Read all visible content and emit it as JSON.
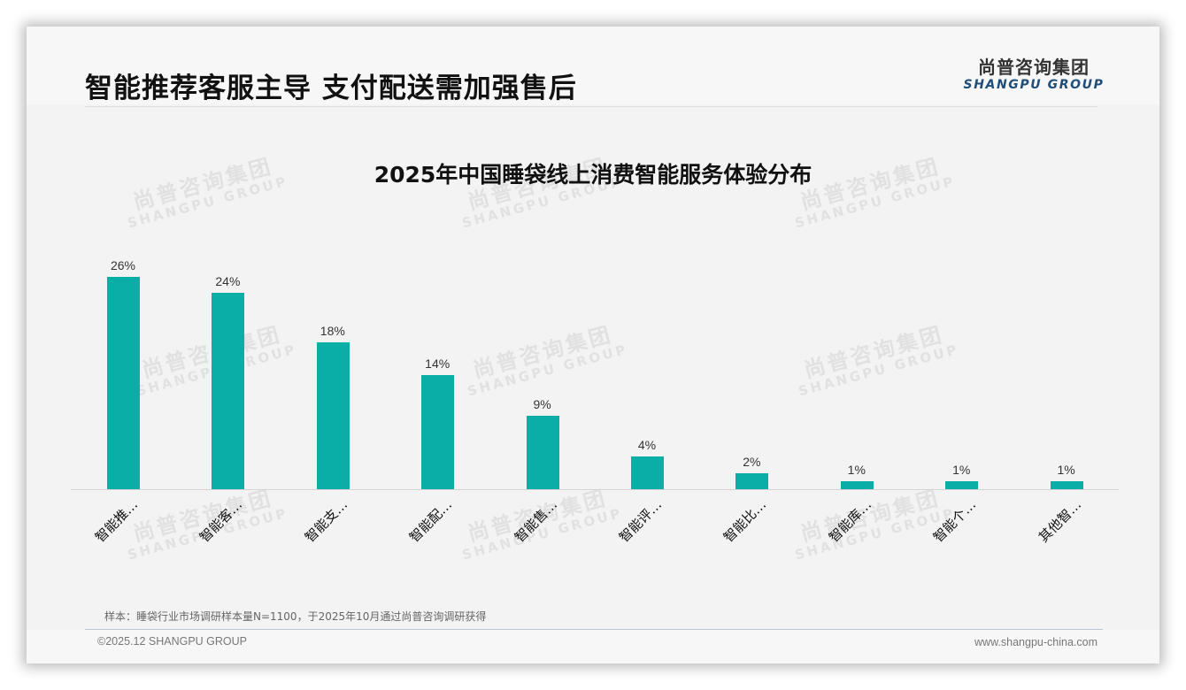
{
  "header": {
    "title": "智能推荐客服主导 支付配送需加强售后",
    "logo_cn": "尚普咨询集团",
    "logo_en": "SHANGPU GROUP"
  },
  "watermark": {
    "cn": "尚普咨询集团",
    "en": "SHANGPU GROUP"
  },
  "chart_data": {
    "type": "bar",
    "title": "2025年中国睡袋线上消费智能服务体验分布",
    "xlabel": "",
    "ylabel": "",
    "ylim": [
      0,
      30
    ],
    "grid": false,
    "legend": null,
    "categories": [
      "智能推…",
      "智能客…",
      "智能支…",
      "智能配…",
      "智能售…",
      "智能评…",
      "智能比…",
      "智能库…",
      "智能个…",
      "其他智…"
    ],
    "values": [
      26,
      24,
      18,
      14,
      9,
      4,
      2,
      1,
      1,
      1
    ],
    "value_labels": [
      "26%",
      "24%",
      "18%",
      "14%",
      "9%",
      "4%",
      "2%",
      "1%",
      "1%",
      "1%"
    ],
    "unit": "%",
    "bar_color": "#0aaea6"
  },
  "footer": {
    "note": "样本：睡袋行业市场调研样本量N=1100，于2025年10月通过尚普咨询调研获得",
    "copyright": "©2025.12 SHANGPU GROUP",
    "website": "www.shangpu-china.com"
  }
}
